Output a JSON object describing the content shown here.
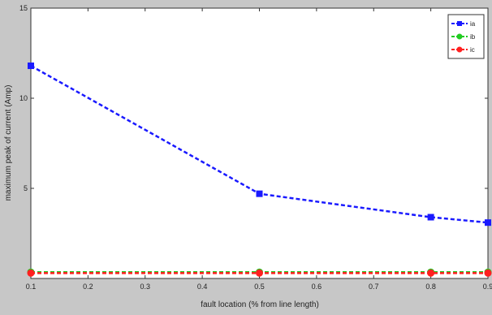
{
  "chart_data": {
    "type": "line",
    "xlabel": "fault location (% from line length)",
    "ylabel": "maximum peak of current (Amp)",
    "xlim": [
      0.1,
      0.9
    ],
    "ylim": [
      0,
      15
    ],
    "x_ticks": [
      "0.1",
      "0.2",
      "0.3",
      "0.4",
      "0.5",
      "0.6",
      "0.7",
      "0.8",
      "0.9"
    ],
    "y_ticks": [
      "5",
      "10",
      "15"
    ],
    "x": [
      0.1,
      0.5,
      0.8,
      0.9
    ],
    "legend_position": "top-right",
    "grid": false,
    "series": [
      {
        "name": "ia",
        "color": "#1a1aff",
        "marker": "square",
        "values": [
          11.8,
          4.7,
          3.4,
          3.1
        ]
      },
      {
        "name": "ib",
        "color": "#22cc22",
        "marker": "circle",
        "values": [
          0.35,
          0.35,
          0.35,
          0.35
        ]
      },
      {
        "name": "ic",
        "color": "#ff2020",
        "marker": "circle",
        "values": [
          0.3,
          0.3,
          0.3,
          0.3
        ]
      }
    ]
  }
}
